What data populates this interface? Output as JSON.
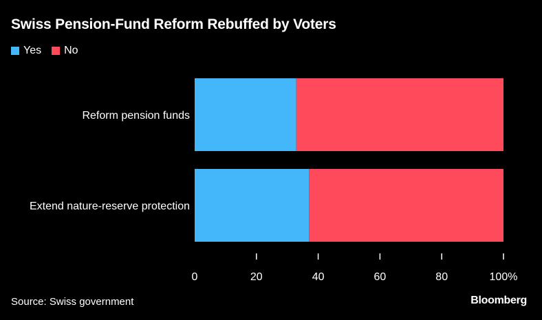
{
  "chart_data": {
    "type": "bar",
    "orientation": "horizontal",
    "stacked": true,
    "title": "Swiss Pension-Fund Reform Rebuffed by Voters",
    "categories": [
      "Reform pension funds",
      "Extend nature-reserve protection"
    ],
    "series": [
      {
        "name": "Yes",
        "color": "#44b7fb",
        "values": [
          32.9,
          37.0
        ]
      },
      {
        "name": "No",
        "color": "#ff4a5b",
        "values": [
          67.1,
          63.0
        ]
      }
    ],
    "xlim": [
      0,
      100
    ],
    "xticks": [
      0,
      20,
      40,
      60,
      80,
      100
    ],
    "xtick_labels": [
      "0",
      "20",
      "40",
      "60",
      "80",
      "100%"
    ],
    "legend": "top-left",
    "grid": false
  },
  "footer": {
    "source": "Source: Swiss government",
    "logo": "Bloomberg"
  },
  "colors": {
    "background": "#000000",
    "text": "#ffffff"
  }
}
